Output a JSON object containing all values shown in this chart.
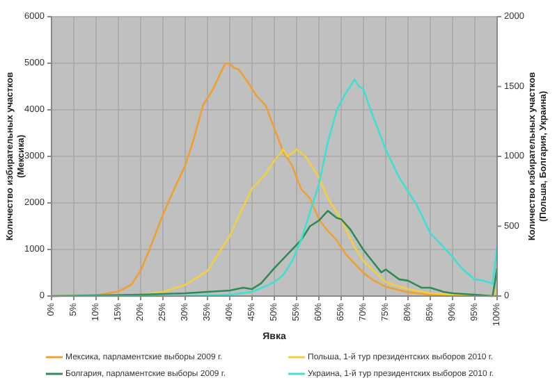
{
  "chart_data": {
    "type": "line",
    "xlabel": "Явка",
    "ylabel": "Количество избирательных участков (Мексика)",
    "y2label": "Количество избирательных участков (Польша, Болгария, Украина)",
    "xlim": [
      0,
      100
    ],
    "xticks": [
      {
        "value": 0,
        "label": "0%"
      },
      {
        "value": 5,
        "label": "5%"
      },
      {
        "value": 10,
        "label": "10%"
      },
      {
        "value": 15,
        "label": "15%"
      },
      {
        "value": 20,
        "label": "20%"
      },
      {
        "value": 25,
        "label": "25%"
      },
      {
        "value": 30,
        "label": "30%"
      },
      {
        "value": 35,
        "label": "35%"
      },
      {
        "value": 40,
        "label": "40%"
      },
      {
        "value": 45,
        "label": "45%"
      },
      {
        "value": 50,
        "label": "50%"
      },
      {
        "value": 55,
        "label": "55%"
      },
      {
        "value": 60,
        "label": "60%"
      },
      {
        "value": 65,
        "label": "65%"
      },
      {
        "value": 70,
        "label": "70%"
      },
      {
        "value": 75,
        "label": "75%"
      },
      {
        "value": 80,
        "label": "80%"
      },
      {
        "value": 85,
        "label": "85%"
      },
      {
        "value": 90,
        "label": "90%"
      },
      {
        "value": 95,
        "label": "95%"
      },
      {
        "value": 100,
        "label": "100%"
      }
    ],
    "ylim": [
      0,
      6000
    ],
    "yticks": [
      0,
      1000,
      2000,
      3000,
      4000,
      5000,
      6000
    ],
    "y2lim": [
      0,
      2000
    ],
    "y2ticks": [
      0,
      500,
      1000,
      1500,
      2000
    ],
    "grid": true,
    "legend": "bottom",
    "series": [
      {
        "name": "Мексика, парламентские выборы 2009 г.",
        "color": "#f0a030",
        "x": [
          0,
          10,
          12,
          15,
          18,
          20,
          22,
          25,
          28,
          30,
          32,
          34,
          36,
          38,
          39,
          40,
          41,
          42,
          44,
          46,
          48,
          50,
          52,
          54,
          56,
          58,
          60,
          62,
          64,
          66,
          68,
          70,
          72,
          75,
          80,
          85,
          90,
          100
        ],
        "values": [
          0,
          20,
          50,
          100,
          250,
          550,
          1000,
          1750,
          2400,
          2800,
          3400,
          4100,
          4400,
          4800,
          5000,
          4980,
          4900,
          4870,
          4600,
          4300,
          4100,
          3600,
          3100,
          2800,
          2300,
          2100,
          1650,
          1400,
          1200,
          900,
          700,
          500,
          350,
          200,
          80,
          30,
          10,
          0
        ]
      },
      {
        "name": "Польша, 1-й тур президентских выборов 2010 г.",
        "color": "#f0d040",
        "axis": "y2",
        "x": [
          0,
          20,
          25,
          30,
          35,
          38,
          40,
          42,
          45,
          48,
          50,
          52,
          53,
          55,
          57,
          60,
          62,
          65,
          68,
          70,
          75,
          80,
          85,
          90,
          99,
          100
        ],
        "values": [
          0,
          10,
          30,
          80,
          180,
          330,
          430,
          570,
          770,
          870,
          970,
          1050,
          1000,
          1050,
          1000,
          850,
          700,
          550,
          350,
          250,
          100,
          50,
          20,
          10,
          0,
          50
        ]
      },
      {
        "name": "Болгария, парламентские выборы 2009 г.",
        "color": "#2e8b57",
        "axis": "y2",
        "x": [
          0,
          20,
          30,
          35,
          40,
          43,
          45,
          47,
          50,
          53,
          56,
          58,
          60,
          62,
          64,
          65,
          67,
          70,
          72,
          74,
          75,
          78,
          80,
          83,
          85,
          88,
          90,
          95,
          99,
          100
        ],
        "values": [
          0,
          10,
          20,
          30,
          40,
          60,
          50,
          90,
          200,
          300,
          400,
          500,
          540,
          610,
          560,
          550,
          480,
          330,
          250,
          170,
          190,
          120,
          110,
          60,
          60,
          30,
          20,
          10,
          0,
          200
        ]
      },
      {
        "name": "Украина, 1-й тур президентских выборов 2010 г.",
        "color": "#40e0d0",
        "axis": "y2",
        "x": [
          0,
          30,
          40,
          45,
          48,
          50,
          52,
          54,
          56,
          58,
          60,
          62,
          64,
          66,
          68,
          69,
          70,
          72,
          75,
          78,
          80,
          82,
          85,
          88,
          90,
          92,
          95,
          97,
          99,
          100
        ],
        "values": [
          0,
          0,
          10,
          30,
          70,
          100,
          150,
          250,
          400,
          600,
          800,
          1100,
          1330,
          1450,
          1550,
          1500,
          1480,
          1300,
          1050,
          850,
          750,
          650,
          450,
          350,
          280,
          200,
          120,
          110,
          90,
          350
        ]
      }
    ]
  }
}
